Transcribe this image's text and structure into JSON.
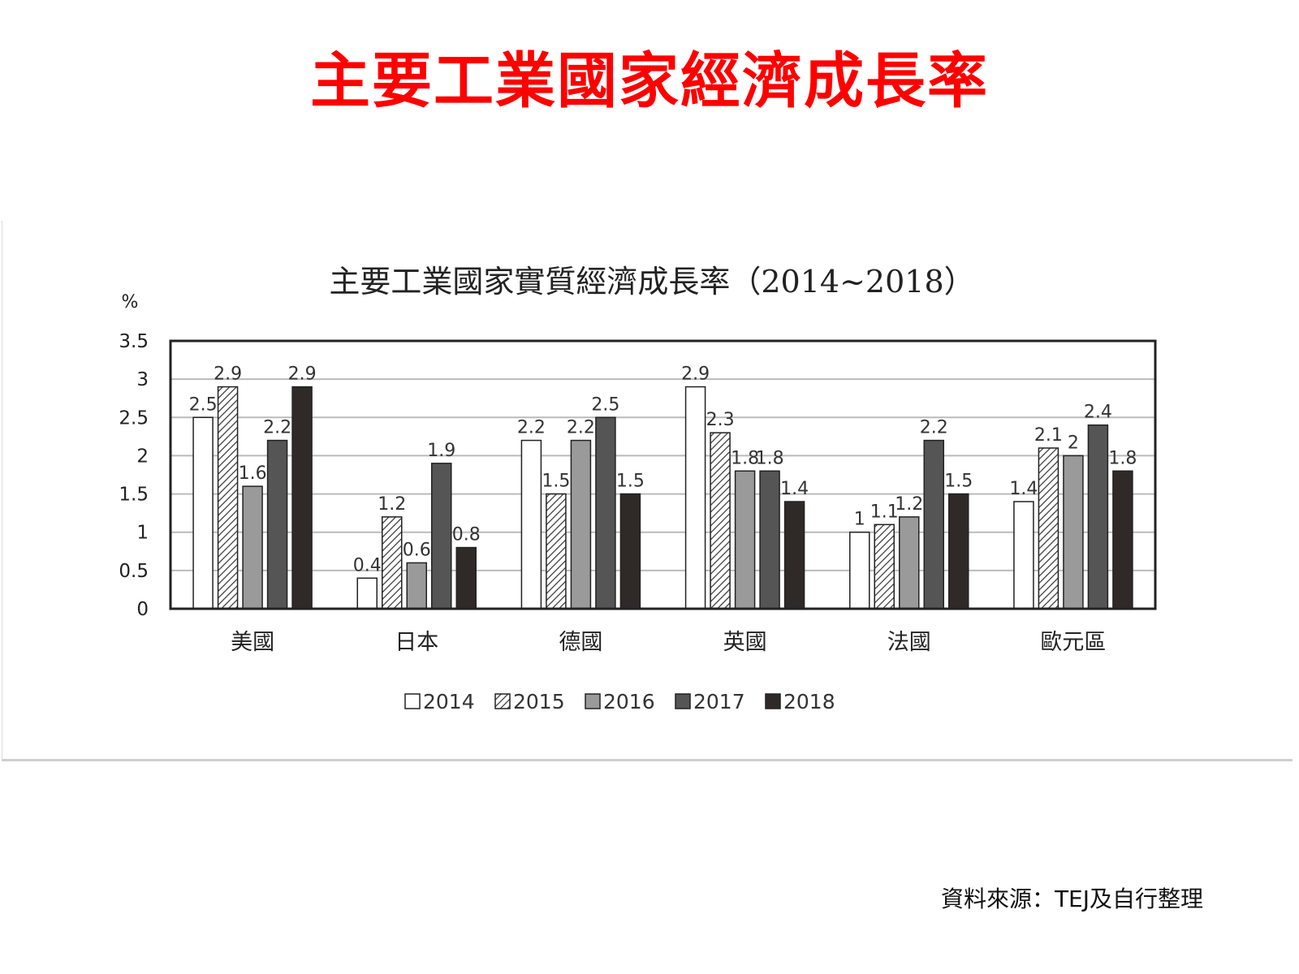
{
  "slide": {
    "title": "主要工業國家經濟成長率"
  },
  "footer": {
    "source": "資料來源：TEJ及自行整理"
  },
  "colors": {
    "title": "#ff0000",
    "axis": "#222222",
    "grid": "#bbbbbb"
  },
  "chart_data": {
    "type": "bar",
    "title": "主要工業國家實質經濟成長率（2014~2018）",
    "ylabel": "%",
    "xlabel": "",
    "ylim": [
      0,
      3.5
    ],
    "yticks": [
      "0",
      "0.5",
      "1",
      "1.5",
      "2",
      "2.5",
      "3",
      "3.5"
    ],
    "grid": true,
    "legend_position": "bottom",
    "categories": [
      "美國",
      "日本",
      "德國",
      "英國",
      "法國",
      "歐元區"
    ],
    "series": [
      {
        "name": "2014",
        "fill": "#ffffff",
        "pattern": "none",
        "values": [
          2.5,
          0.4,
          2.2,
          2.9,
          1,
          1.4
        ],
        "labels": [
          "2.5",
          "0.4",
          "2.2",
          "2.9",
          "1",
          "1.4"
        ]
      },
      {
        "name": "2015",
        "fill": "#ffffff",
        "pattern": "hatch",
        "values": [
          2.9,
          1.2,
          1.5,
          2.3,
          1.1,
          2.1
        ],
        "labels": [
          "2.9",
          "1.2",
          "1.5",
          "2.3",
          "1.1",
          "2.1"
        ]
      },
      {
        "name": "2016",
        "fill": "#9a9a9a",
        "pattern": "none",
        "values": [
          1.6,
          0.6,
          2.2,
          1.8,
          1.2,
          2
        ],
        "labels": [
          "1.6",
          "0.6",
          "2.2",
          "1.8",
          "1.2",
          "2"
        ]
      },
      {
        "name": "2017",
        "fill": "#555555",
        "pattern": "none",
        "values": [
          2.2,
          1.9,
          2.5,
          1.8,
          2.2,
          2.4
        ],
        "labels": [
          "2.2",
          "1.9",
          "2.5",
          "1.8",
          "2.2",
          "2.4"
        ]
      },
      {
        "name": "2018",
        "fill": "#2f2a28",
        "pattern": "none",
        "values": [
          2.9,
          0.8,
          1.5,
          1.4,
          1.5,
          1.8
        ],
        "labels": [
          "2.9",
          "0.8",
          "1.5",
          "1.4",
          "1.5",
          "1.8"
        ]
      }
    ]
  }
}
